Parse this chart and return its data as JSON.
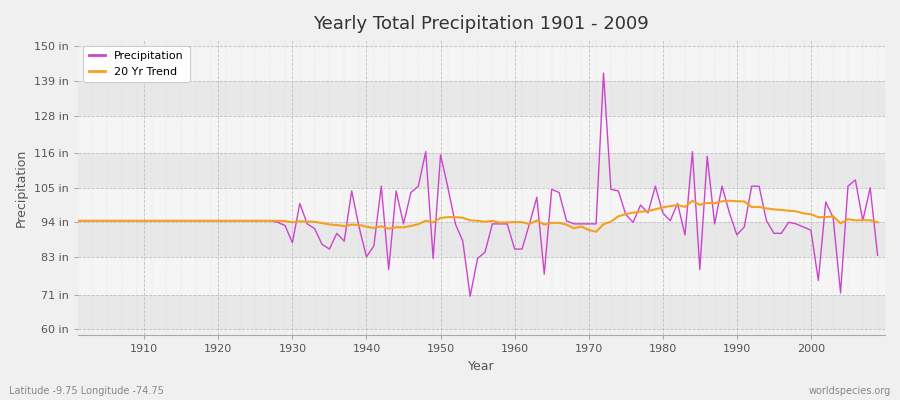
{
  "title": "Yearly Total Precipitation 1901 - 2009",
  "xlabel": "Year",
  "ylabel": "Precipitation",
  "subtitle_left": "Latitude -9.75 Longitude -74.75",
  "subtitle_right": "worldspecies.org",
  "yticks": [
    60,
    71,
    83,
    94,
    105,
    116,
    128,
    139,
    150
  ],
  "ytick_labels": [
    "60 in",
    "71 in",
    "83 in",
    "94 in",
    "105 in",
    "116 in",
    "128 in",
    "139 in",
    "150 in"
  ],
  "ylim": [
    58,
    152
  ],
  "xlim": [
    1901,
    2010
  ],
  "bg_color": "#f0f0f0",
  "plot_bg_color": "#f0f0f0",
  "grid_color": "#cccccc",
  "precip_color": "#cc44cc",
  "trend_color": "#f5a020",
  "years": [
    1901,
    1902,
    1903,
    1904,
    1905,
    1906,
    1907,
    1908,
    1909,
    1910,
    1911,
    1912,
    1913,
    1914,
    1915,
    1916,
    1917,
    1918,
    1919,
    1920,
    1921,
    1922,
    1923,
    1924,
    1925,
    1926,
    1927,
    1928,
    1929,
    1930,
    1931,
    1932,
    1933,
    1934,
    1935,
    1936,
    1937,
    1938,
    1939,
    1940,
    1941,
    1942,
    1943,
    1944,
    1945,
    1946,
    1947,
    1948,
    1949,
    1950,
    1951,
    1952,
    1953,
    1954,
    1955,
    1956,
    1957,
    1958,
    1959,
    1960,
    1961,
    1962,
    1963,
    1964,
    1965,
    1966,
    1967,
    1968,
    1969,
    1970,
    1971,
    1972,
    1973,
    1974,
    1975,
    1976,
    1977,
    1978,
    1979,
    1980,
    1981,
    1982,
    1983,
    1984,
    1985,
    1986,
    1987,
    1988,
    1989,
    1990,
    1991,
    1992,
    1993,
    1994,
    1995,
    1996,
    1997,
    1998,
    1999,
    2000,
    2001,
    2002,
    2003,
    2004,
    2005,
    2006,
    2007,
    2008,
    2009
  ],
  "precip": [
    94.5,
    94.5,
    94.5,
    94.5,
    94.5,
    94.5,
    94.5,
    94.5,
    94.5,
    94.5,
    94.5,
    94.5,
    94.5,
    94.5,
    94.5,
    94.5,
    94.5,
    94.5,
    94.5,
    94.5,
    94.5,
    94.5,
    94.5,
    94.5,
    94.5,
    94.5,
    94.5,
    94.0,
    93.0,
    87.5,
    100.0,
    93.5,
    92.0,
    87.0,
    85.5,
    90.5,
    88.0,
    104.0,
    92.5,
    83.0,
    86.5,
    105.5,
    79.0,
    104.0,
    93.5,
    103.5,
    105.5,
    116.5,
    82.5,
    115.5,
    105.0,
    93.5,
    88.0,
    70.5,
    82.5,
    84.5,
    93.5,
    93.5,
    93.5,
    85.5,
    85.5,
    93.5,
    102.0,
    77.5,
    104.5,
    103.5,
    94.5,
    93.5,
    93.5,
    93.5,
    93.5,
    141.5,
    104.5,
    104.0,
    96.5,
    94.0,
    99.5,
    97.0,
    105.5,
    97.0,
    94.5,
    100.0,
    90.0,
    116.5,
    79.0,
    115.0,
    93.5,
    105.5,
    97.0,
    90.0,
    92.5,
    105.5,
    105.5,
    94.5,
    90.5,
    90.5,
    94.0,
    93.5,
    92.5,
    91.5,
    75.5,
    100.5,
    95.5,
    71.5,
    105.5,
    107.5,
    94.5,
    105.0,
    83.5
  ]
}
